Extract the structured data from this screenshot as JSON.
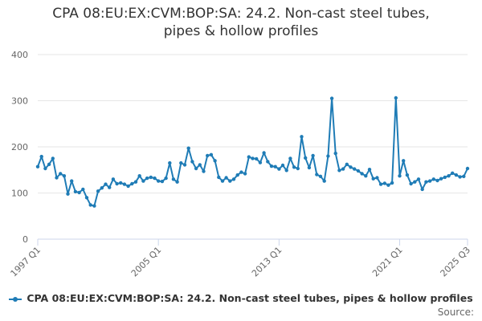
{
  "chart_data": {
    "type": "line",
    "title_lines": [
      "CPA 08:EU:EX:CVM:BOP:SA: 24.2. Non-cast steel tubes,",
      "pipes & hollow profiles"
    ],
    "xlabel": "",
    "ylabel": "",
    "ylim": [
      0,
      400
    ],
    "yticks": [
      0,
      100,
      200,
      300,
      400
    ],
    "xlim": [
      1997.0,
      2025.5
    ],
    "xtick_labels": [
      {
        "label": "1997 Q1",
        "x": 1997.0
      },
      {
        "label": "2005 Q1",
        "x": 2005.0
      },
      {
        "label": "2013 Q1",
        "x": 2013.0
      },
      {
        "label": "2021 Q1",
        "x": 2021.0
      },
      {
        "label": "2025 Q3",
        "x": 2025.5
      }
    ],
    "grid": true,
    "legend_position": "bottom",
    "color": "#1f7cb6",
    "series": [
      {
        "name": "CPA 08:EU:EX:CVM:BOP:SA: 24.2. Non-cast steel tubes, pipes & hollow profiles",
        "start": "1997 Q1",
        "frequency": "quarterly",
        "values": [
          157,
          179,
          153,
          162,
          175,
          133,
          142,
          137,
          98,
          126,
          103,
          101,
          108,
          90,
          74,
          72,
          104,
          111,
          119,
          112,
          130,
          120,
          122,
          119,
          115,
          120,
          124,
          137,
          126,
          132,
          134,
          132,
          126,
          125,
          132,
          165,
          130,
          124,
          165,
          161,
          197,
          168,
          153,
          161,
          147,
          181,
          183,
          170,
          134,
          126,
          133,
          126,
          130,
          139,
          145,
          142,
          178,
          175,
          174,
          166,
          187,
          168,
          158,
          157,
          152,
          160,
          149,
          175,
          156,
          153,
          222,
          176,
          155,
          181,
          140,
          136,
          126,
          180,
          305,
          186,
          149,
          152,
          162,
          156,
          152,
          148,
          142,
          137,
          151,
          131,
          133,
          119,
          121,
          117,
          122,
          306,
          137,
          170,
          139,
          120,
          124,
          130,
          108,
          124,
          126,
          130,
          127,
          131,
          134,
          137,
          143,
          139,
          135,
          136,
          153
        ]
      }
    ]
  },
  "legend": {
    "label": "CPA 08:EU:EX:CVM:BOP:SA: 24.2. Non-cast steel tubes, pipes & hollow profiles"
  },
  "source": {
    "label": "Source:"
  }
}
